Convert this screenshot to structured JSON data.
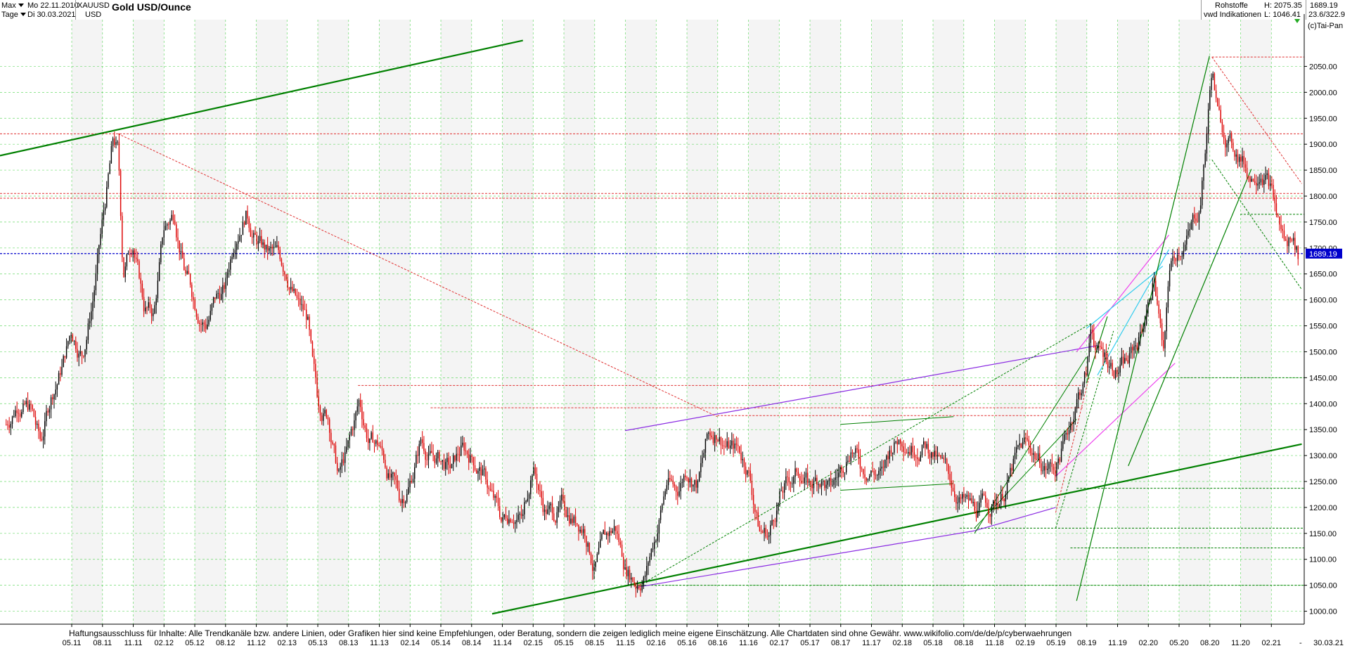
{
  "header": {
    "range_label": "Max",
    "period_label": "Tage",
    "start_date": "Mo 22.11.2010",
    "end_date": "Di 30.03.2021",
    "symbol": "XAUUSD",
    "currency": "USD",
    "title": "Gold USD/Ounce",
    "category": "Rohstoffe",
    "source": "vwd Indikationen",
    "high_label": "H: 2075.35",
    "low_label": "L: 1046.41",
    "last_value": "1689.19",
    "change_value": "23.6/322.9",
    "copyright": "(c)Tai-Pan"
  },
  "disclaimer": "Haftungsausschluss für Inhalte: Alle Trendkanäle bzw. andere Linien, oder Grafiken hier sind keine Empfehlungen, oder Beratung, sondern die zeigen lediglich meine eigene Einschätzung. Alle Chartdaten sind ohne Gewähr.  www.wikifolio.com/de/de/p/cyberwaehrungen",
  "colors": {
    "candle_up": "#000000",
    "candle_down": "#dd0000",
    "grid": "#32cd32",
    "resistance": "#e03030",
    "current_price": "#0000cc",
    "trend_green": "#008000",
    "trend_purple": "#8a2be2",
    "trend_magenta": "#ee44ee",
    "trend_cyan": "#33ccee"
  },
  "chart_data": {
    "type": "candlestick",
    "title": "Gold USD/Ounce",
    "ylim": [
      975,
      2140
    ],
    "xlim": [
      2010.75,
      2021.35
    ],
    "grid": true,
    "y_ticks": [
      1000,
      1050,
      1100,
      1150,
      1200,
      1250,
      1300,
      1350,
      1400,
      1450,
      1500,
      1550,
      1600,
      1650,
      1700,
      1750,
      1800,
      1850,
      1900,
      1950,
      2000,
      2050
    ],
    "x_ticks": [
      {
        "label": "05.11",
        "t": 2011.333
      },
      {
        "label": "08.11",
        "t": 2011.583
      },
      {
        "label": "11.11",
        "t": 2011.833
      },
      {
        "label": "02.12",
        "t": 2012.083
      },
      {
        "label": "05.12",
        "t": 2012.333
      },
      {
        "label": "08.12",
        "t": 2012.583
      },
      {
        "label": "11.12",
        "t": 2012.833
      },
      {
        "label": "02.13",
        "t": 2013.083
      },
      {
        "label": "05.13",
        "t": 2013.333
      },
      {
        "label": "08.13",
        "t": 2013.583
      },
      {
        "label": "11.13",
        "t": 2013.833
      },
      {
        "label": "02.14",
        "t": 2014.083
      },
      {
        "label": "05.14",
        "t": 2014.333
      },
      {
        "label": "08.14",
        "t": 2014.583
      },
      {
        "label": "11.14",
        "t": 2014.833
      },
      {
        "label": "02.15",
        "t": 2015.083
      },
      {
        "label": "05.15",
        "t": 2015.333
      },
      {
        "label": "08.15",
        "t": 2015.583
      },
      {
        "label": "11.15",
        "t": 2015.833
      },
      {
        "label": "02.16",
        "t": 2016.083
      },
      {
        "label": "05.16",
        "t": 2016.333
      },
      {
        "label": "08.16",
        "t": 2016.583
      },
      {
        "label": "11.16",
        "t": 2016.833
      },
      {
        "label": "02.17",
        "t": 2017.083
      },
      {
        "label": "05.17",
        "t": 2017.333
      },
      {
        "label": "08.17",
        "t": 2017.583
      },
      {
        "label": "11.17",
        "t": 2017.833
      },
      {
        "label": "02.18",
        "t": 2018.083
      },
      {
        "label": "05.18",
        "t": 2018.333
      },
      {
        "label": "08.18",
        "t": 2018.583
      },
      {
        "label": "11.18",
        "t": 2018.833
      },
      {
        "label": "02.19",
        "t": 2019.083
      },
      {
        "label": "05.19",
        "t": 2019.333
      },
      {
        "label": "08.19",
        "t": 2019.583
      },
      {
        "label": "11.19",
        "t": 2019.833
      },
      {
        "label": "02.20",
        "t": 2020.083
      },
      {
        "label": "05.20",
        "t": 2020.333
      },
      {
        "label": "08.20",
        "t": 2020.583
      },
      {
        "label": "11.20",
        "t": 2020.833
      },
      {
        "label": "02.21",
        "t": 2021.083
      }
    ],
    "x_end_label": "30.03.21",
    "price_label": "1689.19",
    "series": [
      {
        "kind": "close_path",
        "points": [
          [
            2010.8,
            1360
          ],
          [
            2010.9,
            1410
          ],
          [
            2011.0,
            1390
          ],
          [
            2011.08,
            1320
          ],
          [
            2011.17,
            1420
          ],
          [
            2011.25,
            1470
          ],
          [
            2011.33,
            1540
          ],
          [
            2011.42,
            1500
          ],
          [
            2011.5,
            1600
          ],
          [
            2011.58,
            1740
          ],
          [
            2011.67,
            1900
          ],
          [
            2011.71,
            1880
          ],
          [
            2011.75,
            1650
          ],
          [
            2011.83,
            1720
          ],
          [
            2011.92,
            1590
          ],
          [
            2012.0,
            1570
          ],
          [
            2012.08,
            1730
          ],
          [
            2012.17,
            1770
          ],
          [
            2012.25,
            1660
          ],
          [
            2012.33,
            1600
          ],
          [
            2012.42,
            1560
          ],
          [
            2012.5,
            1600
          ],
          [
            2012.58,
            1620
          ],
          [
            2012.67,
            1740
          ],
          [
            2012.75,
            1780
          ],
          [
            2012.83,
            1720
          ],
          [
            2012.92,
            1690
          ],
          [
            2013.0,
            1680
          ],
          [
            2013.08,
            1660
          ],
          [
            2013.17,
            1590
          ],
          [
            2013.25,
            1560
          ],
          [
            2013.29,
            1460
          ],
          [
            2013.33,
            1400
          ],
          [
            2013.42,
            1380
          ],
          [
            2013.5,
            1260
          ],
          [
            2013.58,
            1310
          ],
          [
            2013.67,
            1400
          ],
          [
            2013.75,
            1330
          ],
          [
            2013.83,
            1320
          ],
          [
            2013.92,
            1260
          ],
          [
            2014.0,
            1210
          ],
          [
            2014.08,
            1250
          ],
          [
            2014.17,
            1330
          ],
          [
            2014.25,
            1300
          ],
          [
            2014.33,
            1290
          ],
          [
            2014.42,
            1270
          ],
          [
            2014.5,
            1310
          ],
          [
            2014.58,
            1300
          ],
          [
            2014.67,
            1270
          ],
          [
            2014.75,
            1220
          ],
          [
            2014.83,
            1170
          ],
          [
            2014.92,
            1200
          ],
          [
            2015.0,
            1180
          ],
          [
            2015.08,
            1290
          ],
          [
            2015.17,
            1200
          ],
          [
            2015.25,
            1190
          ],
          [
            2015.33,
            1200
          ],
          [
            2015.42,
            1180
          ],
          [
            2015.5,
            1170
          ],
          [
            2015.58,
            1090
          ],
          [
            2015.67,
            1130
          ],
          [
            2015.75,
            1160
          ],
          [
            2015.83,
            1090
          ],
          [
            2015.92,
            1060
          ],
          [
            2016.0,
            1080
          ],
          [
            2016.08,
            1150
          ],
          [
            2016.17,
            1250
          ],
          [
            2016.25,
            1230
          ],
          [
            2016.33,
            1280
          ],
          [
            2016.42,
            1250
          ],
          [
            2016.5,
            1330
          ],
          [
            2016.58,
            1350
          ],
          [
            2016.67,
            1320
          ],
          [
            2016.75,
            1310
          ],
          [
            2016.83,
            1280
          ],
          [
            2016.92,
            1160
          ],
          [
            2017.0,
            1150
          ],
          [
            2017.08,
            1220
          ],
          [
            2017.17,
            1250
          ],
          [
            2017.25,
            1270
          ],
          [
            2017.33,
            1240
          ],
          [
            2017.42,
            1260
          ],
          [
            2017.5,
            1230
          ],
          [
            2017.58,
            1270
          ],
          [
            2017.67,
            1330
          ],
          [
            2017.75,
            1280
          ],
          [
            2017.83,
            1280
          ],
          [
            2017.92,
            1260
          ],
          [
            2018.0,
            1320
          ],
          [
            2018.08,
            1340
          ],
          [
            2018.17,
            1330
          ],
          [
            2018.25,
            1330
          ],
          [
            2018.33,
            1310
          ],
          [
            2018.42,
            1270
          ],
          [
            2018.5,
            1240
          ],
          [
            2018.58,
            1210
          ],
          [
            2018.67,
            1190
          ],
          [
            2018.75,
            1200
          ],
          [
            2018.83,
            1210
          ],
          [
            2018.92,
            1240
          ],
          [
            2019.0,
            1290
          ],
          [
            2019.08,
            1320
          ],
          [
            2019.17,
            1300
          ],
          [
            2019.25,
            1280
          ],
          [
            2019.33,
            1280
          ],
          [
            2019.42,
            1340
          ],
          [
            2019.5,
            1410
          ],
          [
            2019.58,
            1460
          ],
          [
            2019.62,
            1550
          ],
          [
            2019.67,
            1500
          ],
          [
            2019.75,
            1490
          ],
          [
            2019.83,
            1470
          ],
          [
            2019.92,
            1480
          ],
          [
            2020.0,
            1520
          ],
          [
            2020.08,
            1590
          ],
          [
            2020.13,
            1650
          ],
          [
            2020.17,
            1570
          ],
          [
            2020.21,
            1480
          ],
          [
            2020.25,
            1650
          ],
          [
            2020.33,
            1700
          ],
          [
            2020.42,
            1730
          ],
          [
            2020.5,
            1780
          ],
          [
            2020.55,
            1900
          ],
          [
            2020.6,
            2050
          ],
          [
            2020.65,
            1950
          ],
          [
            2020.75,
            1900
          ],
          [
            2020.83,
            1880
          ],
          [
            2020.92,
            1840
          ],
          [
            2021.0,
            1870
          ],
          [
            2021.04,
            1850
          ],
          [
            2021.08,
            1820
          ],
          [
            2021.13,
            1760
          ],
          [
            2021.17,
            1730
          ],
          [
            2021.21,
            1700
          ],
          [
            2021.25,
            1730
          ],
          [
            2021.3,
            1690
          ]
        ]
      }
    ],
    "horizontal_levels": [
      {
        "y": 1920,
        "color": "resistance",
        "style": "dashed",
        "from": 2010.75
      },
      {
        "y": 1805,
        "color": "resistance",
        "style": "dashed",
        "from": 2010.75
      },
      {
        "y": 1796,
        "color": "resistance",
        "style": "dashed",
        "from": 2010.75
      },
      {
        "y": 1689.19,
        "color": "current_price",
        "style": "dashed",
        "from": 2010.75
      },
      {
        "y": 2068,
        "color": "resistance",
        "style": "dashed",
        "from": 2020.6
      },
      {
        "y": 1435,
        "color": "resistance",
        "style": "dashed",
        "from": 2013.66,
        "to": 2019.55
      },
      {
        "y": 1392,
        "color": "resistance",
        "style": "dashed",
        "from": 2014.25,
        "to": 2019.55
      },
      {
        "y": 1377,
        "color": "resistance",
        "style": "dashed",
        "from": 2016.58,
        "to": 2019.45
      },
      {
        "y": 1765,
        "color": "trend_green",
        "style": "dashed",
        "from": 2020.83
      },
      {
        "y": 1450,
        "color": "trend_green",
        "style": "dashed",
        "from": 2020.2
      },
      {
        "y": 1237,
        "color": "trend_green",
        "style": "dashed",
        "from": 2019.5
      },
      {
        "y": 1160,
        "color": "trend_green",
        "style": "dashed",
        "from": 2018.55
      },
      {
        "y": 1122,
        "color": "trend_green",
        "style": "dashed",
        "from": 2019.45
      },
      {
        "y": 1050,
        "color": "trend_green",
        "style": "dashed",
        "from": 2015.9
      }
    ],
    "trend_lines": [
      {
        "from": [
          2010.75,
          1878
        ],
        "to": [
          2015.0,
          2100
        ],
        "color": "trend_green",
        "width": 2.2
      },
      {
        "from": [
          2014.75,
          995
        ],
        "to": [
          2021.33,
          1322
        ],
        "color": "trend_green",
        "width": 2.2
      },
      {
        "from": [
          2015.92,
          1046
        ],
        "to": [
          2018.67,
          1155
        ],
        "color": "trend_purple",
        "width": 1.2
      },
      {
        "from": [
          2018.67,
          1155
        ],
        "to": [
          2019.33,
          1200
        ],
        "color": "trend_purple",
        "width": 1.2
      },
      {
        "from": [
          2015.83,
          1348
        ],
        "to": [
          2019.67,
          1512
        ],
        "color": "trend_purple",
        "width": 1.2
      },
      {
        "from": [
          2019.5,
          1500
        ],
        "to": [
          2020.25,
          1725
        ],
        "color": "trend_magenta",
        "width": 1.2
      },
      {
        "from": [
          2019.33,
          1260
        ],
        "to": [
          2020.3,
          1478
        ],
        "color": "trend_magenta",
        "width": 1.2
      },
      {
        "from": [
          2019.67,
          1455
        ],
        "to": [
          2020.25,
          1697
        ],
        "color": "trend_cyan",
        "width": 1.2
      },
      {
        "from": [
          2019.58,
          1545
        ],
        "to": [
          2020.2,
          1665
        ],
        "color": "trend_cyan",
        "width": 1.2
      },
      {
        "from": [
          2019.5,
          1020
        ],
        "to": [
          2020.58,
          2070
        ],
        "color": "trend_green",
        "width": 1.2
      },
      {
        "from": [
          2019.92,
          1280
        ],
        "to": [
          2020.92,
          1852
        ],
        "color": "trend_green",
        "width": 1.2
      },
      {
        "from": [
          2019.58,
          1440
        ],
        "to": [
          2019.75,
          1568
        ],
        "color": "trend_green",
        "width": 1.2
      },
      {
        "from": [
          2018.67,
          1150
        ],
        "to": [
          2019.58,
          1490
        ],
        "color": "trend_green",
        "width": 1.0
      },
      {
        "from": [
          2018.67,
          1160
        ],
        "to": [
          2019.5,
          1370
        ],
        "color": "trend_green",
        "width": 1.0
      },
      {
        "from": [
          2017.58,
          1233
        ],
        "to": [
          2018.5,
          1246
        ],
        "color": "trend_green",
        "width": 1.0
      },
      {
        "from": [
          2017.58,
          1360
        ],
        "to": [
          2018.5,
          1375
        ],
        "color": "trend_green",
        "width": 1.0
      },
      {
        "from": [
          2015.92,
          1046
        ],
        "to": [
          2019.62,
          1555
        ],
        "color": "trend_green",
        "width": 1.0,
        "style": "dashed"
      },
      {
        "from": [
          2011.71,
          1920
        ],
        "to": [
          2016.58,
          1375
        ],
        "color": "resistance",
        "width": 1.0,
        "style": "dashed"
      },
      {
        "from": [
          2020.6,
          2068
        ],
        "to": [
          2021.33,
          1824
        ],
        "color": "resistance",
        "width": 1.0,
        "style": "dashed"
      },
      {
        "from": [
          2020.6,
          1870
        ],
        "to": [
          2021.33,
          1620
        ],
        "color": "trend_green",
        "width": 1.0,
        "style": "dashed"
      },
      {
        "from": [
          2019.33,
          1160
        ],
        "to": [
          2019.8,
          1540
        ],
        "color": "trend_green",
        "width": 1.0,
        "style": "dashed"
      },
      {
        "from": [
          2019.33,
          1190
        ],
        "to": [
          2019.6,
          1450
        ],
        "color": "resistance",
        "width": 1.0,
        "style": "dashed"
      }
    ]
  }
}
